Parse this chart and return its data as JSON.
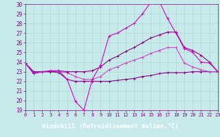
{
  "x_hours": [
    0,
    1,
    2,
    3,
    4,
    5,
    6,
    7,
    8,
    9,
    10,
    11,
    12,
    13,
    14,
    15,
    16,
    17,
    18,
    19,
    20,
    21,
    22,
    23
  ],
  "line_main": [
    23.9,
    22.8,
    23.0,
    23.1,
    23.1,
    22.2,
    19.9,
    19.0,
    22.2,
    23.7,
    26.7,
    27.0,
    27.5,
    28.0,
    29.0,
    30.2,
    30.3,
    28.5,
    27.0,
    25.4,
    25.0,
    24.0,
    23.9,
    23.0
  ],
  "line_max": [
    23.9,
    23.0,
    23.0,
    23.0,
    23.1,
    23.0,
    23.0,
    23.0,
    23.1,
    23.5,
    24.2,
    24.6,
    25.1,
    25.5,
    26.0,
    26.5,
    26.8,
    27.1,
    27.1,
    25.5,
    25.2,
    24.7,
    24.0,
    23.0
  ],
  "line_avg": [
    23.9,
    22.9,
    23.0,
    23.0,
    23.0,
    22.9,
    22.5,
    22.2,
    22.2,
    22.5,
    23.2,
    23.5,
    23.9,
    24.2,
    24.5,
    24.9,
    25.2,
    25.5,
    25.5,
    23.9,
    23.5,
    23.2,
    23.0,
    23.0
  ],
  "line_min": [
    23.9,
    22.8,
    23.0,
    23.0,
    22.9,
    22.2,
    22.0,
    22.0,
    22.0,
    22.0,
    22.0,
    22.1,
    22.2,
    22.3,
    22.5,
    22.6,
    22.8,
    22.9,
    22.9,
    22.9,
    23.0,
    23.0,
    23.0,
    23.0
  ],
  "bg_color": "#c8eaea",
  "grid_color": "#b0d8d8",
  "line_color_main": "#cc00cc",
  "line_color_max": "#880088",
  "line_color_avg": "#cc44cc",
  "line_color_min": "#880088",
  "xlabel": "Windchill (Refroidissement éolien,°C)",
  "ylim": [
    19,
    30
  ],
  "xlim": [
    0,
    23
  ],
  "yticks": [
    19,
    20,
    21,
    22,
    23,
    24,
    25,
    26,
    27,
    28,
    29,
    30
  ],
  "xticks": [
    0,
    1,
    2,
    3,
    4,
    5,
    6,
    7,
    8,
    9,
    10,
    11,
    12,
    13,
    14,
    15,
    16,
    17,
    18,
    19,
    20,
    21,
    22,
    23
  ],
  "tick_color": "#880088",
  "xlabel_bg": "#880088",
  "xlabel_fg": "white"
}
